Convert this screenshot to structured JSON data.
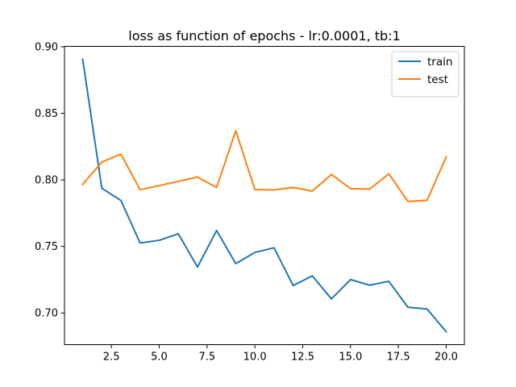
{
  "chart_data": {
    "type": "line",
    "title": "loss as function of epochs - lr:0.0001, tb:1",
    "xlabel": "",
    "ylabel": "",
    "xlim": [
      0.05,
      20.95
    ],
    "ylim": [
      0.6762,
      0.9003
    ],
    "xticks": [
      2.5,
      5.0,
      7.5,
      10.0,
      12.5,
      15.0,
      17.5,
      20.0
    ],
    "xtick_labels": [
      "2.5",
      "5.0",
      "7.5",
      "10.0",
      "12.5",
      "15.0",
      "17.5",
      "20.0"
    ],
    "yticks": [
      0.7,
      0.75,
      0.8,
      0.85,
      0.9
    ],
    "ytick_labels": [
      "0.70",
      "0.75",
      "0.80",
      "0.85",
      "0.90"
    ],
    "grid": false,
    "legend_position": "top-right",
    "x": [
      1,
      2,
      3,
      4,
      5,
      6,
      7,
      8,
      9,
      10,
      11,
      12,
      13,
      14,
      15,
      16,
      17,
      18,
      19,
      20
    ],
    "series": [
      {
        "name": "train",
        "color": "#1f77b4",
        "values": [
          0.8906,
          0.7937,
          0.7845,
          0.7526,
          0.7546,
          0.7595,
          0.7345,
          0.762,
          0.7371,
          0.7455,
          0.749,
          0.7206,
          0.7279,
          0.7106,
          0.7251,
          0.7209,
          0.7238,
          0.7043,
          0.703,
          0.6859
        ]
      },
      {
        "name": "test",
        "color": "#ff7f0e",
        "values": [
          0.7966,
          0.8134,
          0.8193,
          0.7926,
          0.7957,
          0.7989,
          0.8021,
          0.7943,
          0.8369,
          0.7927,
          0.7925,
          0.7943,
          0.7916,
          0.8041,
          0.7934,
          0.7931,
          0.8045,
          0.7838,
          0.7847,
          0.8172
        ]
      }
    ]
  }
}
